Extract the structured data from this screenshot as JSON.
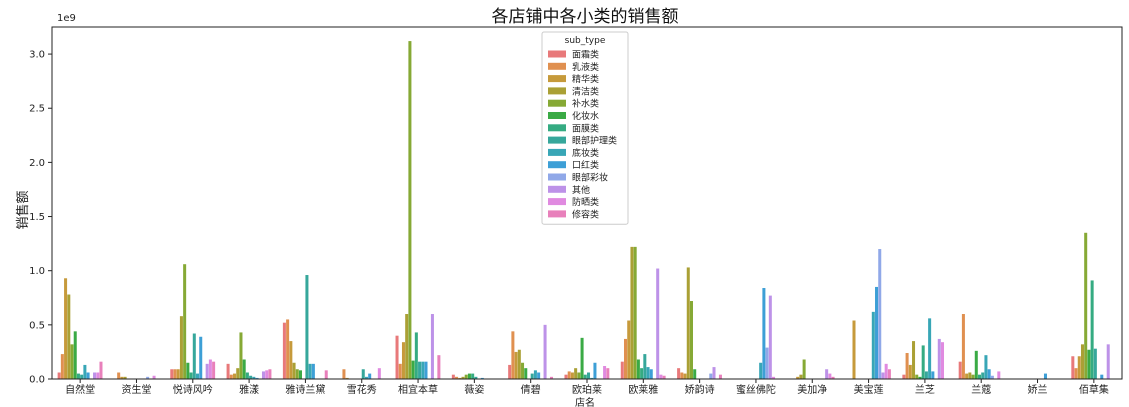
{
  "chart_data": {
    "type": "bar",
    "title": "各店铺中各小类的销售额",
    "xlabel": "店名",
    "ylabel": "销售额",
    "offset_text": "1e9",
    "ylim": [
      0,
      3.25
    ],
    "yticks": [
      "0.0",
      "0.5",
      "1.0",
      "1.5",
      "2.0",
      "2.5",
      "3.0"
    ],
    "legend_title": "sub_type",
    "legend_position": "top-center",
    "categories": [
      "自然堂",
      "资生堂",
      "悦诗风吟",
      "雅漾",
      "雅诗兰黛",
      "雪花秀",
      "相宜本草",
      "薇姿",
      "倩碧",
      "欧珀莱",
      "欧莱雅",
      "娇韵诗",
      "蜜丝佛陀",
      "美加净",
      "美宝莲",
      "兰芝",
      "兰蔻",
      "娇兰",
      "佰草集"
    ],
    "series": [
      {
        "name": "面霜类",
        "color": "#e8797a",
        "values": [
          0.06,
          0.0,
          0.09,
          0.14,
          0.52,
          0.0,
          0.4,
          0.04,
          0.13,
          0.04,
          0.16,
          0.1,
          0.0,
          0.0,
          0.0,
          0.04,
          0.16,
          0.0,
          0.21
        ]
      },
      {
        "name": "乳液类",
        "color": "#e09050",
        "values": [
          0.23,
          0.06,
          0.09,
          0.04,
          0.55,
          0.09,
          0.14,
          0.02,
          0.44,
          0.07,
          0.37,
          0.06,
          0.0,
          0.0,
          0.0,
          0.24,
          0.6,
          0.0,
          0.1
        ]
      },
      {
        "name": "精华类",
        "color": "#c69a3b",
        "values": [
          0.93,
          0.02,
          0.09,
          0.05,
          0.35,
          0.01,
          0.34,
          0.01,
          0.25,
          0.06,
          0.54,
          0.05,
          0.0,
          0.02,
          0.54,
          0.13,
          0.05,
          0.0,
          0.21
        ]
      },
      {
        "name": "清洁类",
        "color": "#aaa035",
        "values": [
          0.78,
          0.02,
          0.58,
          0.1,
          0.15,
          0.0,
          0.6,
          0.02,
          0.27,
          0.1,
          1.22,
          1.03,
          0.0,
          0.04,
          0.0,
          0.35,
          0.06,
          0.0,
          0.32
        ]
      },
      {
        "name": "补水类",
        "color": "#86a935",
        "values": [
          0.32,
          0.0,
          1.06,
          0.43,
          0.09,
          0.0,
          3.12,
          0.04,
          0.15,
          0.06,
          1.22,
          0.72,
          0.0,
          0.18,
          0.0,
          0.04,
          0.04,
          0.0,
          1.35
        ]
      },
      {
        "name": "化妆水",
        "color": "#3aaa45",
        "values": [
          0.44,
          0.0,
          0.15,
          0.18,
          0.08,
          0.0,
          0.17,
          0.05,
          0.1,
          0.38,
          0.18,
          0.09,
          0.0,
          0.0,
          0.0,
          0.02,
          0.26,
          0.0,
          0.27
        ]
      },
      {
        "name": "面膜类",
        "color": "#35ab82",
        "values": [
          0.05,
          0.0,
          0.06,
          0.06,
          0.0,
          0.0,
          0.43,
          0.05,
          0.0,
          0.04,
          0.1,
          0.0,
          0.0,
          0.0,
          0.0,
          0.31,
          0.04,
          0.0,
          0.91
        ]
      },
      {
        "name": "眼部护理类",
        "color": "#36a79b",
        "values": [
          0.04,
          0.0,
          0.42,
          0.03,
          0.96,
          0.09,
          0.16,
          0.02,
          0.05,
          0.06,
          0.23,
          0.0,
          0.0,
          0.0,
          0.0,
          0.07,
          0.06,
          0.0,
          0.28
        ]
      },
      {
        "name": "底妆类",
        "color": "#38a6b6",
        "values": [
          0.13,
          0.0,
          0.05,
          0.02,
          0.14,
          0.02,
          0.16,
          0.0,
          0.08,
          0.01,
          0.11,
          0.0,
          0.15,
          0.0,
          0.62,
          0.56,
          0.22,
          0.0,
          0.0
        ]
      },
      {
        "name": "口红类",
        "color": "#3d9fd6",
        "values": [
          0.06,
          0.0,
          0.39,
          0.01,
          0.14,
          0.05,
          0.16,
          0.01,
          0.06,
          0.15,
          0.09,
          0.0,
          0.84,
          0.0,
          0.85,
          0.07,
          0.09,
          0.05,
          0.04
        ]
      },
      {
        "name": "眼部彩妆",
        "color": "#90a8e8",
        "values": [
          0.0,
          0.02,
          0.0,
          0.0,
          0.0,
          0.0,
          0.0,
          0.0,
          0.0,
          0.0,
          0.0,
          0.05,
          0.29,
          0.0,
          1.2,
          0.0,
          0.03,
          0.0,
          0.0
        ]
      },
      {
        "name": "其他",
        "color": "#bd92e8",
        "values": [
          0.06,
          0.0,
          0.14,
          0.07,
          0.0,
          0.0,
          0.6,
          0.0,
          0.5,
          0.0,
          1.02,
          0.11,
          0.77,
          0.09,
          0.06,
          0.37,
          0.0,
          0.0,
          0.32
        ]
      },
      {
        "name": "防晒类",
        "color": "#e08ae0",
        "values": [
          0.06,
          0.03,
          0.18,
          0.08,
          0.0,
          0.1,
          0.0,
          0.0,
          0.0,
          0.12,
          0.04,
          0.0,
          0.02,
          0.05,
          0.14,
          0.34,
          0.07,
          0.0,
          0.0
        ]
      },
      {
        "name": "修容类",
        "color": "#e880bb",
        "values": [
          0.16,
          0.0,
          0.16,
          0.09,
          0.08,
          0.0,
          0.22,
          0.0,
          0.02,
          0.1,
          0.03,
          0.04,
          0.0,
          0.02,
          0.09,
          0.0,
          0.0,
          0.0,
          0.0
        ]
      }
    ]
  }
}
